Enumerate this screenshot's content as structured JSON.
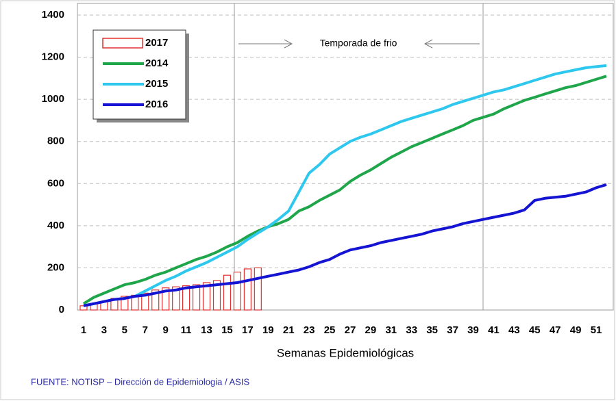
{
  "chart_data": {
    "type": "line",
    "x_label": "Semanas Epidemiológicas",
    "annotation": "Temporada de frio",
    "source": "FUENTE: NOTISP – Dirección de Epidemiologia / ASIS",
    "categories": [
      1,
      null,
      3,
      null,
      5,
      null,
      7,
      null,
      9,
      null,
      11,
      null,
      13,
      null,
      15,
      null,
      17,
      null,
      19,
      null,
      21,
      null,
      23,
      null,
      25,
      null,
      27,
      null,
      29,
      null,
      31,
      null,
      33,
      null,
      35,
      null,
      37,
      null,
      39,
      null,
      41,
      null,
      43,
      null,
      45,
      null,
      47,
      null,
      49,
      null,
      51,
      null
    ],
    "series": [
      {
        "name": "2017",
        "type": "bar",
        "color": "#e03030",
        "values": [
          20,
          30,
          40,
          55,
          65,
          70,
          80,
          95,
          105,
          110,
          115,
          120,
          130,
          140,
          165,
          180,
          195,
          200,
          null,
          null,
          null,
          null,
          null,
          null,
          null,
          null,
          null,
          null,
          null,
          null,
          null,
          null,
          null,
          null,
          null,
          null,
          null,
          null,
          null,
          null,
          null,
          null,
          null,
          null,
          null,
          null,
          null,
          null,
          null,
          null,
          null,
          null
        ]
      },
      {
        "name": "2014",
        "type": "line",
        "color": "#1fa64a",
        "values": [
          30,
          60,
          80,
          100,
          120,
          130,
          145,
          165,
          180,
          200,
          220,
          240,
          255,
          275,
          300,
          320,
          350,
          375,
          395,
          410,
          430,
          470,
          490,
          520,
          545,
          570,
          610,
          640,
          665,
          695,
          725,
          750,
          775,
          795,
          815,
          835,
          855,
          875,
          900,
          915,
          930,
          955,
          975,
          995,
          1010,
          1025,
          1040,
          1055,
          1065,
          1080,
          1095,
          1110
        ]
      },
      {
        "name": "2015",
        "type": "line",
        "color": "#2ec8ee",
        "values": [
          20,
          30,
          40,
          50,
          55,
          65,
          90,
          115,
          140,
          160,
          185,
          205,
          225,
          250,
          275,
          300,
          335,
          365,
          395,
          430,
          470,
          560,
          650,
          690,
          740,
          770,
          800,
          820,
          835,
          855,
          875,
          895,
          910,
          925,
          940,
          955,
          975,
          990,
          1005,
          1020,
          1035,
          1045,
          1060,
          1075,
          1090,
          1105,
          1120,
          1130,
          1140,
          1150,
          1155,
          1160
        ]
      },
      {
        "name": "2016",
        "type": "line",
        "color": "#1414d2",
        "values": [
          20,
          30,
          40,
          50,
          55,
          65,
          70,
          80,
          90,
          95,
          105,
          110,
          115,
          120,
          125,
          130,
          140,
          150,
          160,
          170,
          180,
          190,
          205,
          225,
          240,
          265,
          285,
          295,
          305,
          320,
          330,
          340,
          350,
          360,
          375,
          385,
          395,
          410,
          420,
          430,
          440,
          450,
          460,
          475,
          520,
          530,
          535,
          540,
          550,
          560,
          580,
          595
        ]
      }
    ],
    "ylim": [
      0,
      1400
    ],
    "yticks": [
      0,
      200,
      400,
      600,
      800,
      1000,
      1200,
      1400
    ],
    "grid": true
  }
}
